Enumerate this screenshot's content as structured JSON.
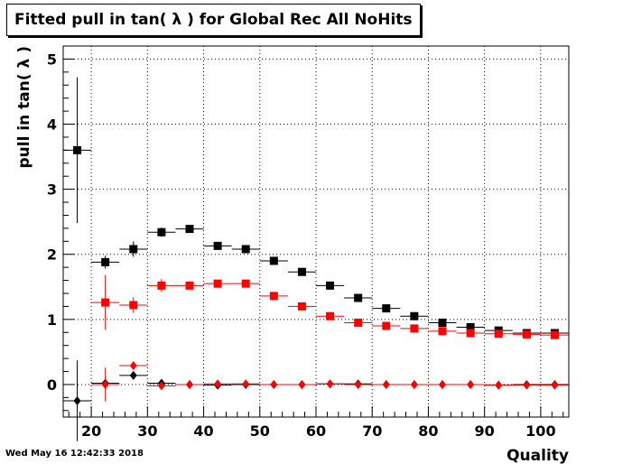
{
  "chart_data": {
    "type": "scatter",
    "title": "Fitted pull in tan( λ ) for Global Rec All NoHits",
    "xlabel": "Quality",
    "ylabel": "pull in tan( λ )",
    "xlim": [
      15,
      105
    ],
    "ylim": [
      -0.5,
      5.2
    ],
    "grid": true,
    "x_ticks": [
      20,
      30,
      40,
      50,
      60,
      70,
      80,
      90,
      100
    ],
    "y_ticks": [
      0,
      1,
      2,
      3,
      4,
      5
    ],
    "x_tick_labels": [
      "20",
      "30",
      "40",
      "50",
      "60",
      "70",
      "80",
      "90",
      "100"
    ],
    "y_tick_labels": [
      "0",
      "1",
      "2",
      "3",
      "4",
      "5"
    ],
    "bin_half_width": 2.5,
    "series": [
      {
        "color": "#000000",
        "marker": "square",
        "x": [
          17.5,
          22.5,
          27.5,
          32.5,
          37.5,
          42.5,
          47.5,
          52.5,
          57.5,
          62.5,
          67.5,
          72.5,
          77.5,
          82.5,
          87.5,
          92.5,
          97.5,
          102.5
        ],
        "y": [
          3.6,
          1.88,
          2.08,
          2.34,
          2.39,
          2.13,
          2.08,
          1.9,
          1.73,
          1.52,
          1.33,
          1.17,
          1.05,
          0.95,
          0.88,
          0.83,
          0.79,
          0.79
        ],
        "err": [
          1.12,
          0.1,
          0.12,
          0.07,
          0.04,
          0.04,
          0.03,
          0.03,
          0.03,
          0.03,
          0.03,
          0.03,
          0.03,
          0.02,
          0.02,
          0.02,
          0.02,
          0.02
        ]
      },
      {
        "color": "#ff0000",
        "marker": "square",
        "x": [
          22.5,
          27.5,
          32.5,
          37.5,
          42.5,
          47.5,
          52.5,
          57.5,
          62.5,
          67.5,
          72.5,
          77.5,
          82.5,
          87.5,
          92.5,
          97.5,
          102.5
        ],
        "y": [
          1.26,
          1.22,
          1.52,
          1.52,
          1.55,
          1.55,
          1.36,
          1.2,
          1.05,
          0.95,
          0.9,
          0.86,
          0.82,
          0.79,
          0.78,
          0.77,
          0.76
        ],
        "err": [
          0.42,
          0.12,
          0.1,
          0.05,
          0.04,
          0.03,
          0.03,
          0.03,
          0.03,
          0.02,
          0.02,
          0.02,
          0.02,
          0.02,
          0.02,
          0.02,
          0.02
        ]
      },
      {
        "color": "#000000",
        "marker": "diamond",
        "x": [
          17.5,
          22.5,
          27.5,
          32.5,
          37.5,
          42.5,
          47.5,
          52.5,
          57.5,
          62.5,
          67.5,
          72.5,
          77.5,
          82.5,
          87.5,
          92.5,
          97.5,
          102.5
        ],
        "y": [
          -0.25,
          0.02,
          0.14,
          0.02,
          0.0,
          -0.01,
          0.0,
          0.0,
          0.0,
          0.01,
          0.01,
          0.0,
          0.0,
          0.0,
          0.0,
          -0.01,
          0.0,
          0.0
        ],
        "err": [
          0.62,
          0.1,
          0.06,
          0.03,
          0.02,
          0.02,
          0.01,
          0.01,
          0.01,
          0.01,
          0.01,
          0.01,
          0.01,
          0.01,
          0.01,
          0.01,
          0.01,
          0.01
        ]
      },
      {
        "color": "#ff0000",
        "marker": "diamond",
        "x": [
          22.5,
          27.5,
          32.5,
          37.5,
          42.5,
          47.5,
          52.5,
          57.5,
          62.5,
          67.5,
          72.5,
          77.5,
          82.5,
          87.5,
          92.5,
          97.5,
          102.5
        ],
        "y": [
          0.0,
          0.29,
          -0.02,
          0.0,
          0.01,
          0.01,
          0.0,
          0.0,
          0.01,
          0.0,
          0.0,
          0.0,
          0.0,
          0.0,
          -0.01,
          -0.01,
          -0.01
        ],
        "err": [
          0.26,
          0.06,
          0.04,
          0.02,
          0.02,
          0.01,
          0.01,
          0.01,
          0.01,
          0.01,
          0.01,
          0.01,
          0.01,
          0.01,
          0.01,
          0.01,
          0.01
        ]
      }
    ]
  },
  "footer": {
    "timestamp": "Wed May 16 12:42:33 2018"
  }
}
